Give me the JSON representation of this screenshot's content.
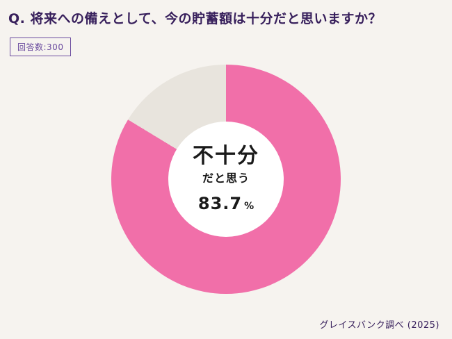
{
  "page": {
    "title": "Q. 将来への備えとして、今の貯蓄額は十分だと思いますか？",
    "respondents_label": "回答数:300",
    "source": "グレイスバンク調べ (2025)"
  },
  "colors": {
    "background": "#f6f3ef",
    "accent": "#38205c",
    "badge": "#6a4a9e",
    "pink": "#f16fa9",
    "gray": "#e8e4dd"
  },
  "chart_data": {
    "type": "pie",
    "subtype": "donut",
    "title": "Q. 将来への備えとして、今の貯蓄額は十分だと思いますか？",
    "respondents": 300,
    "legend": "none",
    "start_angle_deg": 0,
    "slices": [
      {
        "label": "不十分だと思う",
        "value": 83.7,
        "color": "#f16fa9"
      },
      {
        "label": "",
        "value": 16.3,
        "color": "#e8e4dd"
      }
    ],
    "center_label": {
      "main": "不十分",
      "sub": "だと思う",
      "value": "83.7",
      "unit": "%"
    }
  }
}
